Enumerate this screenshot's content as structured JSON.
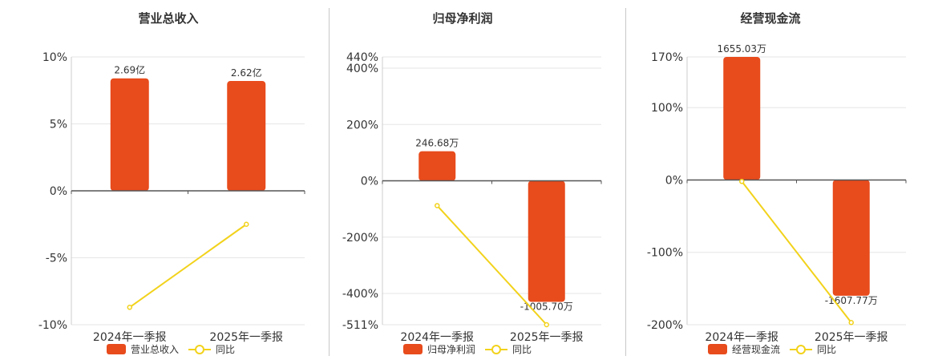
{
  "chart_data": [
    {
      "type": "bar",
      "title": "营业总收入",
      "categories": [
        "2024年一季报",
        "2025年一季报"
      ],
      "series": [
        {
          "name": "营业总收入",
          "type": "bar",
          "axis": "left",
          "values": [
            8.4,
            8.2
          ],
          "labels": [
            "2.69亿",
            "2.62亿"
          ]
        },
        {
          "name": "同比",
          "type": "line",
          "axis": "left",
          "values": [
            -8.7,
            -2.5
          ]
        }
      ],
      "ylim": [
        -10,
        10
      ],
      "yticks": [
        "10%",
        "5%",
        "0%",
        "-5%",
        "-10%"
      ],
      "ytick_values": [
        10,
        5,
        0,
        -5,
        -10
      ],
      "legend": "bottom-center"
    },
    {
      "type": "bar",
      "title": "归母净利润",
      "categories": [
        "2024年一季报",
        "2025年一季报"
      ],
      "series": [
        {
          "name": "归母净利润",
          "type": "bar",
          "axis": "left",
          "values": [
            105,
            -430
          ],
          "labels": [
            "246.68万",
            "-1005.70万"
          ]
        },
        {
          "name": "同比",
          "type": "line",
          "axis": "left",
          "values": [
            -88,
            -511
          ]
        }
      ],
      "ylim": [
        -511,
        440
      ],
      "yticks": [
        "440%",
        "400%",
        "200%",
        "0%",
        "-200%",
        "-400%",
        "-511%"
      ],
      "ytick_values": [
        440,
        400,
        200,
        0,
        -200,
        -400,
        -511
      ],
      "legend": "bottom-center"
    },
    {
      "type": "bar",
      "title": "经营现金流",
      "categories": [
        "2024年一季报",
        "2025年一季报"
      ],
      "series": [
        {
          "name": "经营现金流",
          "type": "bar",
          "axis": "left",
          "values": [
            170,
            -160
          ],
          "labels": [
            "1655.03万",
            "-1607.77万"
          ]
        },
        {
          "name": "同比",
          "type": "line",
          "axis": "left",
          "values": [
            -2,
            -197
          ]
        }
      ],
      "ylim": [
        -200,
        170
      ],
      "yticks": [
        "170%",
        "100%",
        "0%",
        "-100%",
        "-200%"
      ],
      "ytick_values": [
        170,
        100,
        0,
        -100,
        -200
      ],
      "legend": "bottom-center"
    }
  ],
  "colors": {
    "bar": "#e84b1c",
    "line": "#f2d21b",
    "grid": "#e6e6e6",
    "axis": "#555555",
    "text": "#333333"
  }
}
